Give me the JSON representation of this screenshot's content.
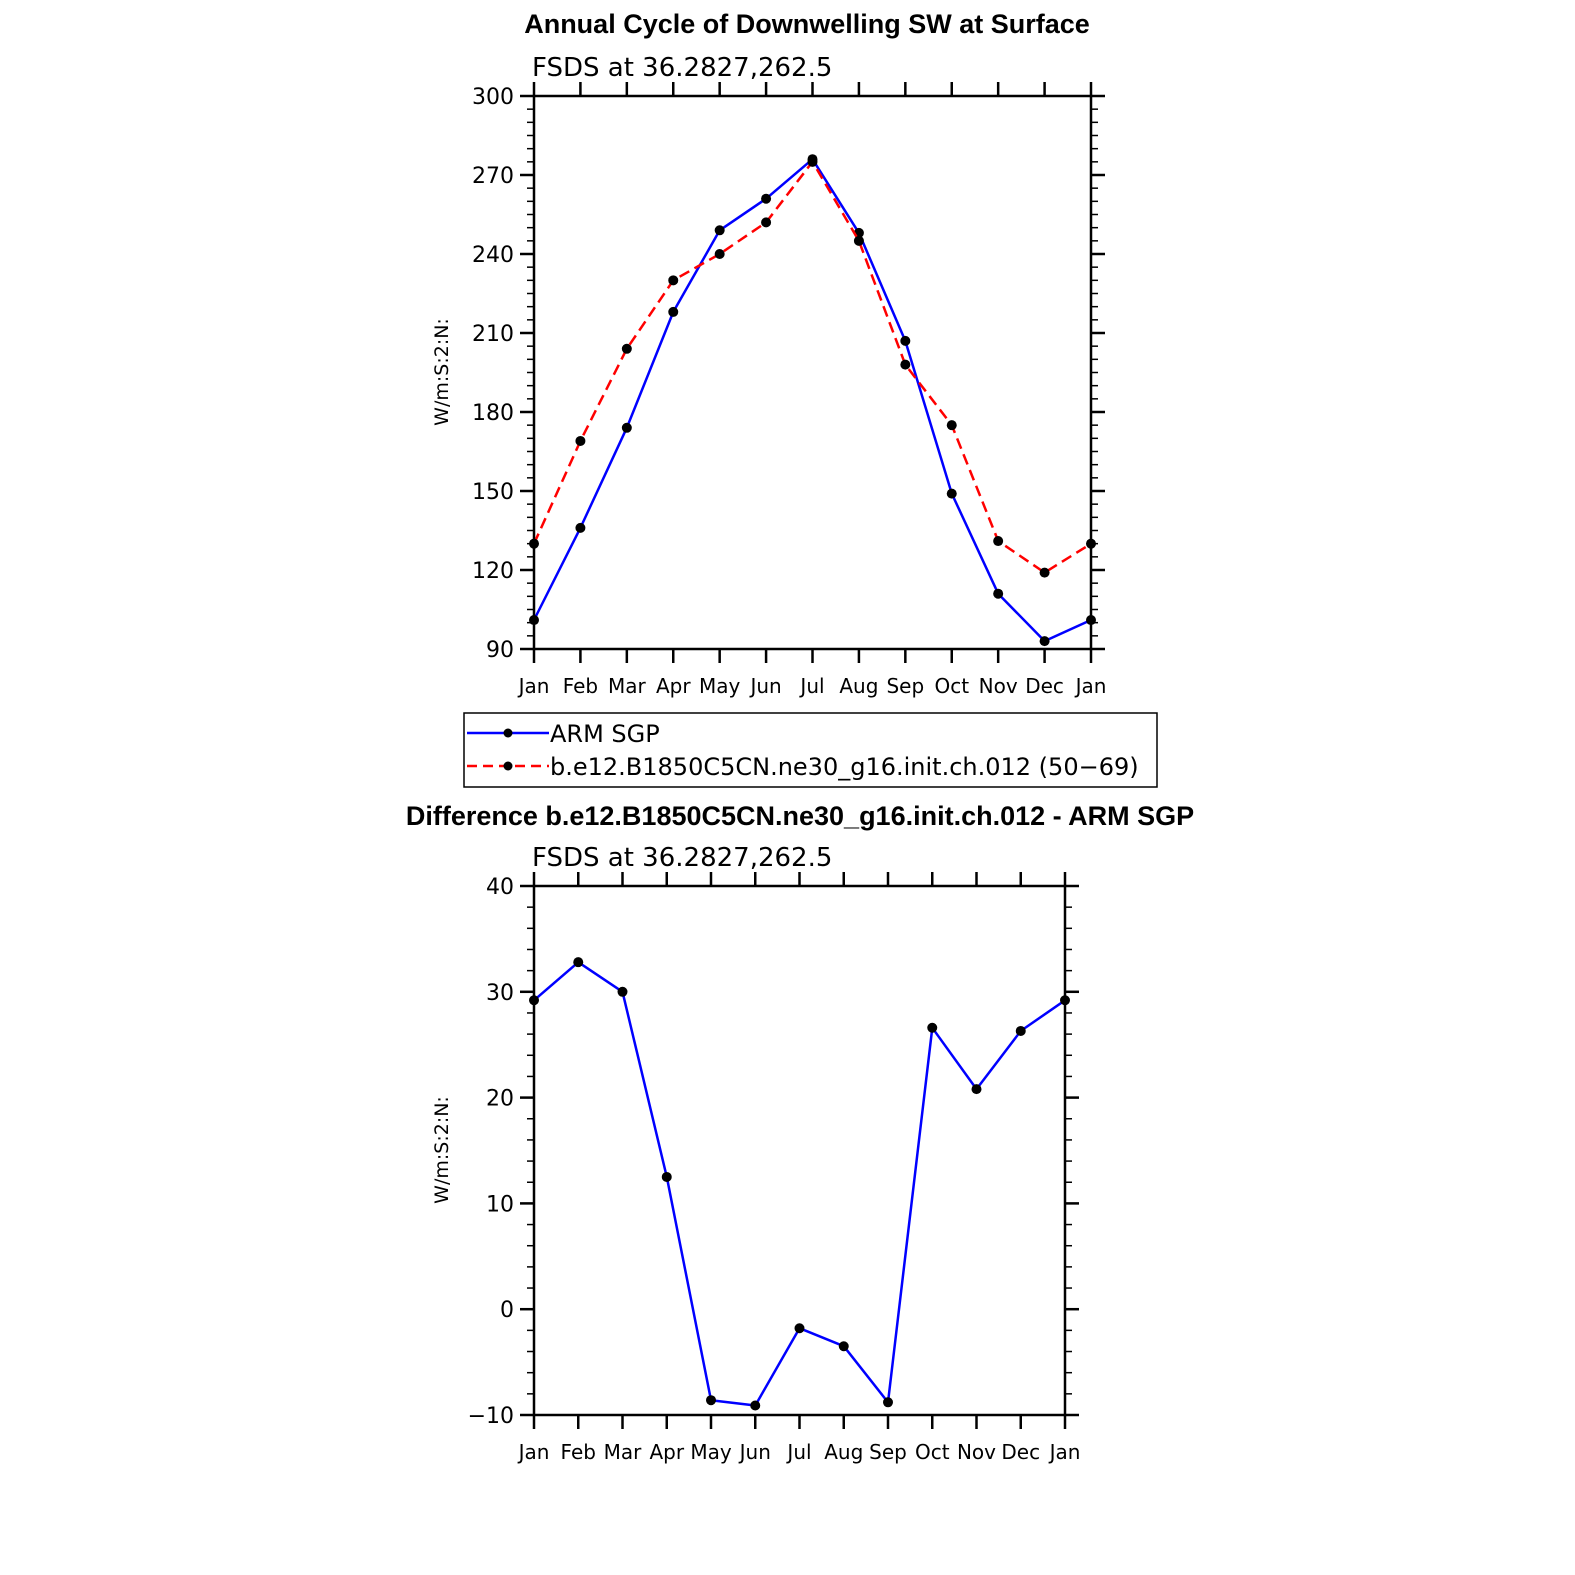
{
  "chart_data": [
    {
      "type": "line",
      "title": "Annual Cycle of Downwelling SW at Surface",
      "subtitle": "FSDS at 36.2827,262.5",
      "xlabel": "",
      "ylabel": "W/m:S:2:N:",
      "categories": [
        "Jan",
        "Feb",
        "Mar",
        "Apr",
        "May",
        "Jun",
        "Jul",
        "Aug",
        "Sep",
        "Oct",
        "Nov",
        "Dec",
        "Jan"
      ],
      "ylim": [
        90,
        300
      ],
      "yticks": [
        "90",
        "120",
        "150",
        "180",
        "210",
        "240",
        "270",
        "300"
      ],
      "grid": false,
      "legend_position": "bottom",
      "series": [
        {
          "name": "ARM SGP",
          "color": "#0000ff",
          "dash": "solid",
          "values": [
            101,
            136,
            174,
            218,
            249,
            261,
            276,
            248,
            207,
            149,
            111,
            93,
            101
          ]
        },
        {
          "name": "b.e12.B1850C5CN.ne30_g16.init.ch.012 (50−69)",
          "color": "#ff0000",
          "dash": "dashed",
          "values": [
            130,
            169,
            204,
            230,
            240,
            252,
            275,
            245,
            198,
            175,
            131,
            119,
            130
          ]
        }
      ]
    },
    {
      "type": "line",
      "title": "Difference b.e12.B1850C5CN.ne30_g16.init.ch.012 - ARM SGP",
      "subtitle": "FSDS at 36.2827,262.5",
      "xlabel": "",
      "ylabel": "W/m:S:2:N:",
      "categories": [
        "Jan",
        "Feb",
        "Mar",
        "Apr",
        "May",
        "Jun",
        "Jul",
        "Aug",
        "Sep",
        "Oct",
        "Nov",
        "Dec",
        "Jan"
      ],
      "ylim": [
        -10,
        40
      ],
      "yticks": [
        "−10",
        "0",
        "10",
        "20",
        "30",
        "40"
      ],
      "grid": false,
      "series": [
        {
          "color": "#0000ff",
          "dash": "solid",
          "values": [
            29.2,
            32.8,
            30.0,
            12.5,
            -8.6,
            -9.1,
            -1.8,
            -3.5,
            -8.8,
            26.6,
            20.8,
            26.3,
            29.2
          ]
        }
      ]
    }
  ]
}
